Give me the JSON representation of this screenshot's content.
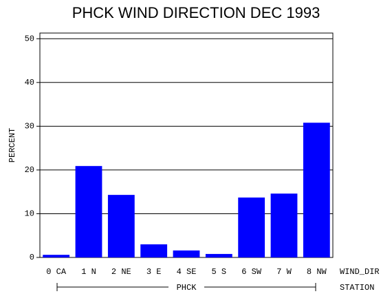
{
  "chart_data": {
    "type": "bar",
    "title": "PHCK WIND DIRECTION DEC 1993",
    "ylabel": "PERCENT",
    "xlabel": "WIND_DIR",
    "group_label": "PHCK",
    "group_axis_label": "STATION",
    "categories": [
      "0 CA",
      "1 N",
      "2 NE",
      "3 E",
      "4 SE",
      "5 S",
      "6 SW",
      "7 W",
      "8 NW"
    ],
    "values": [
      0.6,
      20.9,
      14.3,
      3.0,
      1.6,
      0.8,
      13.7,
      14.6,
      30.8
    ],
    "color": "#0000ff",
    "ylim": [
      0,
      51.3
    ],
    "yticks": [
      0,
      10,
      20,
      30,
      40,
      50
    ],
    "grid": true
  }
}
